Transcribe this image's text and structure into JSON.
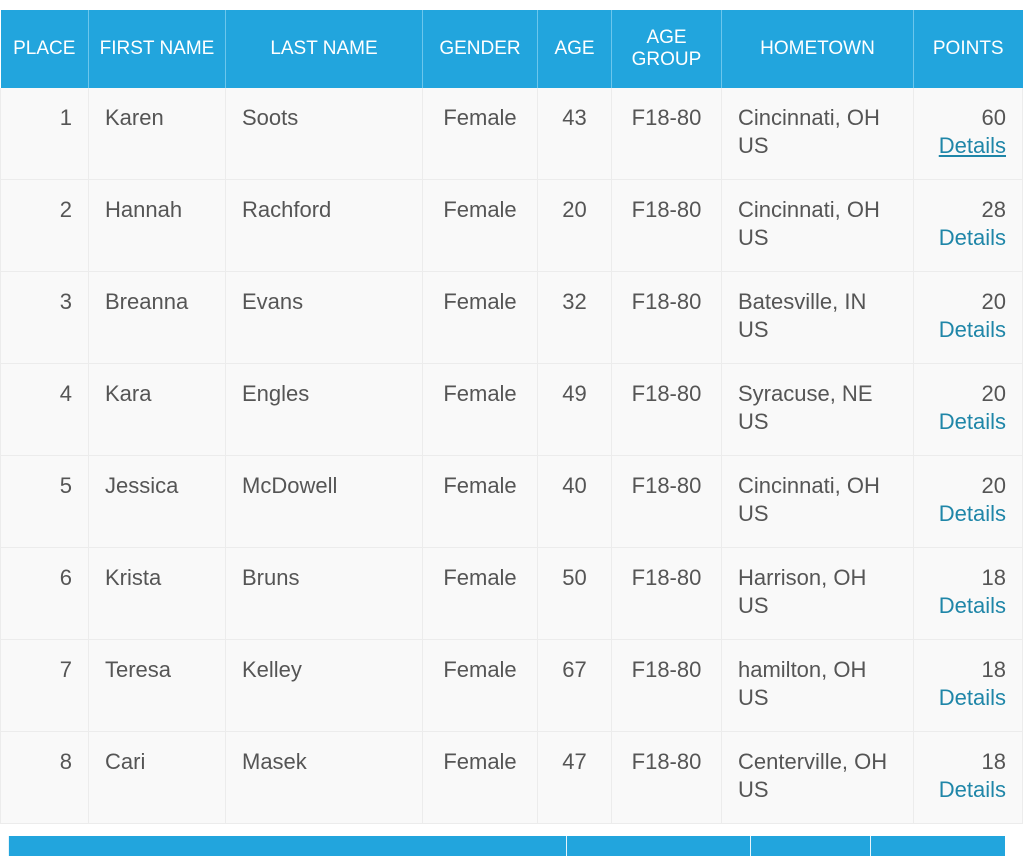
{
  "table": {
    "headers": [
      "PLACE",
      "FIRST NAME",
      "LAST NAME",
      "GENDER",
      "AGE",
      "AGE GROUP",
      "HOMETOWN",
      "POINTS"
    ],
    "details_label": "Details",
    "rows": [
      {
        "place": "1",
        "first": "Karen",
        "last": "Soots",
        "gender": "Female",
        "age": "43",
        "group": "F18-80",
        "hometown": "Cincinnati, OH US",
        "points": "60"
      },
      {
        "place": "2",
        "first": "Hannah",
        "last": "Rachford",
        "gender": "Female",
        "age": "20",
        "group": "F18-80",
        "hometown": "Cincinnati, OH US",
        "points": "28"
      },
      {
        "place": "3",
        "first": "Breanna",
        "last": "Evans",
        "gender": "Female",
        "age": "32",
        "group": "F18-80",
        "hometown": "Batesville, IN US",
        "points": "20"
      },
      {
        "place": "4",
        "first": "Kara",
        "last": "Engles",
        "gender": "Female",
        "age": "49",
        "group": "F18-80",
        "hometown": "Syracuse, NE US",
        "points": "20"
      },
      {
        "place": "5",
        "first": "Jessica",
        "last": "McDowell",
        "gender": "Female",
        "age": "40",
        "group": "F18-80",
        "hometown": "Cincinnati, OH US",
        "points": "20"
      },
      {
        "place": "6",
        "first": "Krista",
        "last": "Bruns",
        "gender": "Female",
        "age": "50",
        "group": "F18-80",
        "hometown": "Harrison, OH US",
        "points": "18"
      },
      {
        "place": "7",
        "first": "Teresa",
        "last": "Kelley",
        "gender": "Female",
        "age": "67",
        "group": "F18-80",
        "hometown": "hamilton, OH US",
        "points": "18"
      },
      {
        "place": "8",
        "first": "Cari",
        "last": "Masek",
        "gender": "Female",
        "age": "47",
        "group": "F18-80",
        "hometown": "Centerville, OH US",
        "points": "18"
      }
    ]
  },
  "colors": {
    "header": "#22a5dd",
    "link": "#1f86a8",
    "cell": "#f9f9f9"
  }
}
